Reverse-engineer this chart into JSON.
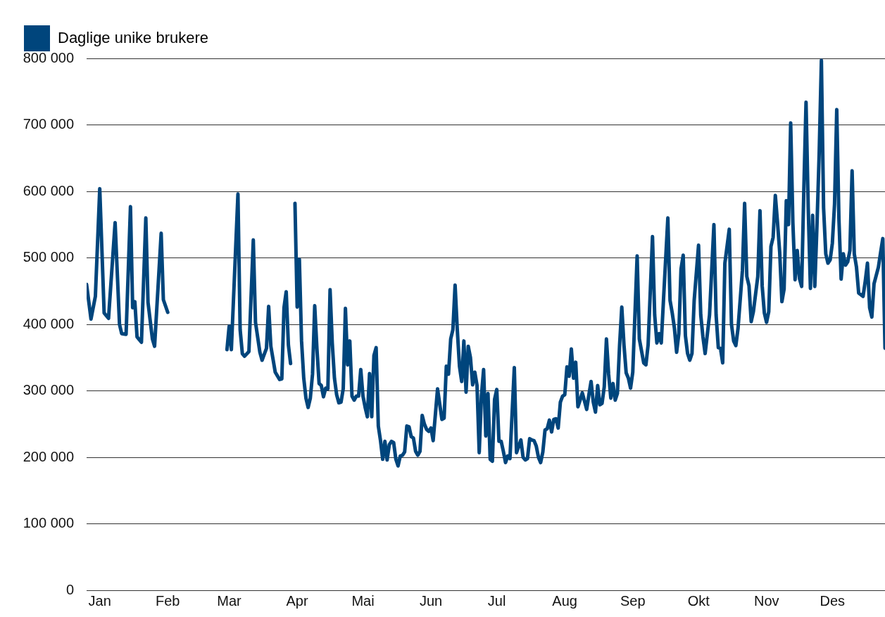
{
  "chart_data": {
    "type": "line",
    "legend": "top left",
    "grid": "y",
    "marker": "none",
    "line_style": "solid",
    "xlim": [
      "--01-01",
      "--12-31"
    ],
    "xticks": [
      {
        "value": "--01-07",
        "label": "Jan"
      },
      {
        "value": "--02-07",
        "label": "Feb"
      },
      {
        "value": "--03-07",
        "label": "Mar"
      },
      {
        "value": "--04-07",
        "label": "Apr"
      },
      {
        "value": "--05-07",
        "label": "Mai"
      },
      {
        "value": "--06-07",
        "label": "Jun"
      },
      {
        "value": "--07-07",
        "label": "Jul"
      },
      {
        "value": "--08-07",
        "label": "Aug"
      },
      {
        "value": "--09-07",
        "label": "Sep"
      },
      {
        "value": "--10-07",
        "label": "Okt"
      },
      {
        "value": "--11-07",
        "label": "Nov"
      },
      {
        "value": "--12-07",
        "label": "Des"
      }
    ],
    "ylim": [
      0,
      800000
    ],
    "yticks": [
      {
        "value": 0,
        "label": "0"
      },
      {
        "value": 100000,
        "label": "100 000"
      },
      {
        "value": 200000,
        "label": "200 000"
      },
      {
        "value": 300000,
        "label": "300 000"
      },
      {
        "value": 400000,
        "label": "400 000"
      },
      {
        "value": 500000,
        "label": "500 000"
      },
      {
        "value": 600000,
        "label": "600 000"
      },
      {
        "value": 700000,
        "label": "700 000"
      },
      {
        "value": 800000,
        "label": "800 000"
      }
    ],
    "x": [
      "--01-01",
      "--01-03",
      "--01-05",
      "--01-07",
      "--01-09",
      "--01-11",
      "--01-14",
      "--01-16",
      "--01-17",
      "--01-19",
      "--01-21",
      "--01-22",
      "--01-23",
      "--01-24",
      "--01-26",
      "--01-28",
      "--01-29",
      "--01-31",
      "--02-01",
      "--02-04",
      "--02-05",
      "--02-07",
      "--02-19",
      "--03-06",
      "--03-07",
      "--03-08",
      "--03-11",
      "--03-12",
      "--03-13",
      "--03-14",
      "--03-16",
      "--03-18",
      "--03-19",
      "--03-21",
      "--03-22",
      "--03-24",
      "--03-25",
      "--03-26",
      "--03-28",
      "--03-30",
      "--03-31",
      "--04-01",
      "--04-02",
      "--04-03",
      "--04-04",
      "--04-05",
      "--04-06",
      "--04-07",
      "--04-08",
      "--04-09",
      "--04-10",
      "--04-11",
      "--04-12",
      "--04-13",
      "--04-14",
      "--04-15",
      "--04-16",
      "--04-17",
      "--04-18",
      "--04-19",
      "--04-20",
      "--04-21",
      "--04-22",
      "--04-23",
      "--04-24",
      "--04-25",
      "--04-26",
      "--04-27",
      "--04-28",
      "--04-29",
      "--04-30",
      "--05-01",
      "--05-02",
      "--05-03",
      "--05-04",
      "--05-05",
      "--05-06",
      "--05-07",
      "--05-08",
      "--05-09",
      "--05-10",
      "--05-11",
      "--05-12",
      "--05-13",
      "--05-14",
      "--05-15",
      "--05-16",
      "--05-17",
      "--05-18",
      "--05-19",
      "--05-20",
      "--05-21",
      "--05-22",
      "--05-23",
      "--05-24",
      "--05-25",
      "--05-26",
      "--05-27",
      "--05-28",
      "--05-29",
      "--05-30",
      "--05-31",
      "--06-01",
      "--06-02",
      "--06-03",
      "--06-04",
      "--06-05",
      "--06-06",
      "--06-07",
      "--06-08",
      "--06-10",
      "--06-12",
      "--06-13",
      "--06-14",
      "--06-15",
      "--06-16",
      "--06-17",
      "--06-18",
      "--06-19",
      "--06-20",
      "--06-21",
      "--06-22",
      "--06-23",
      "--06-24",
      "--06-25",
      "--06-26",
      "--06-27",
      "--06-28",
      "--06-29",
      "--06-30",
      "--07-01",
      "--07-02",
      "--07-03",
      "--07-04",
      "--07-05",
      "--07-06",
      "--07-07",
      "--07-08",
      "--07-09",
      "--07-10",
      "--07-11",
      "--07-12",
      "--07-13",
      "--07-15",
      "--07-16",
      "--07-18",
      "--07-19",
      "--07-20",
      "--07-21",
      "--07-22",
      "--07-23",
      "--07-24",
      "--07-25",
      "--07-26",
      "--07-27",
      "--07-28",
      "--07-29",
      "--07-30",
      "--07-31",
      "--08-01",
      "--08-02",
      "--08-03",
      "--08-04",
      "--08-05",
      "--08-06",
      "--08-07",
      "--08-08",
      "--08-09",
      "--08-10",
      "--08-11",
      "--08-12",
      "--08-13",
      "--08-14",
      "--08-15",
      "--08-17",
      "--08-18",
      "--08-19",
      "--08-20",
      "--08-21",
      "--08-22",
      "--08-23",
      "--08-24",
      "--08-25",
      "--08-26",
      "--08-27",
      "--08-28",
      "--08-29",
      "--08-30",
      "--08-31",
      "--09-01",
      "--09-02",
      "--09-03",
      "--09-04",
      "--09-05",
      "--09-06",
      "--09-07",
      "--09-09",
      "--09-10",
      "--09-12",
      "--09-13",
      "--09-14",
      "--09-16",
      "--09-17",
      "--09-18",
      "--09-19",
      "--09-20",
      "--09-21",
      "--09-23",
      "--09-24",
      "--09-25",
      "--09-26",
      "--09-27",
      "--09-28",
      "--09-29",
      "--09-30",
      "--10-01",
      "--10-02",
      "--10-03",
      "--10-04",
      "--10-05",
      "--10-07",
      "--10-08",
      "--10-09",
      "--10-10",
      "--10-12",
      "--10-14",
      "--10-15",
      "--10-16",
      "--10-17",
      "--10-18",
      "--10-19",
      "--10-21",
      "--10-22",
      "--10-23",
      "--10-24",
      "--10-25",
      "--10-27",
      "--10-28",
      "--10-29",
      "--10-30",
      "--10-31",
      "--11-01",
      "--11-03",
      "--11-04",
      "--11-05",
      "--11-06",
      "--11-07",
      "--11-08",
      "--11-09",
      "--11-10",
      "--11-11",
      "--11-12",
      "--11-13",
      "--11-14",
      "--11-15",
      "--11-16",
      "--11-17",
      "--11-18",
      "--11-19",
      "--11-20",
      "--11-21",
      "--11-22",
      "--11-23",
      "--11-24",
      "--11-25",
      "--11-26",
      "--11-27",
      "--11-28",
      "--11-29",
      "--11-30",
      "--12-01",
      "--12-02",
      "--12-03",
      "--12-04",
      "--12-05",
      "--12-06",
      "--12-07",
      "--12-08",
      "--12-09",
      "--12-10",
      "--12-11",
      "--12-12",
      "--12-13",
      "--12-14",
      "--12-15",
      "--12-16",
      "--12-17",
      "--12-18",
      "--12-19",
      "--12-21",
      "--12-22",
      "--12-23",
      "--12-24",
      "--12-25",
      "--12-26",
      "--12-28",
      "--12-29",
      "--12-30",
      "--12-31"
    ],
    "series": [
      {
        "name": "Daglige unike brukere",
        "color": "#00457c",
        "values": [
          460000,
          408000,
          442000,
          604000,
          417000,
          409000,
          553000,
          400000,
          386000,
          385000,
          577000,
          425000,
          434000,
          381000,
          373000,
          560000,
          433000,
          378000,
          367000,
          537000,
          437000,
          418000,
          null,
          362000,
          397000,
          362000,
          596000,
          392000,
          356000,
          352000,
          359000,
          527000,
          403000,
          358000,
          346000,
          364000,
          427000,
          367000,
          328000,
          317000,
          318000,
          425000,
          449000,
          369000,
          341000,
          null,
          582000,
          426000,
          498000,
          375000,
          319000,
          289000,
          275000,
          289000,
          325000,
          428000,
          364000,
          311000,
          308000,
          291000,
          304000,
          303000,
          452000,
          372000,
          319000,
          294000,
          282000,
          283000,
          303000,
          424000,
          339000,
          375000,
          292000,
          286000,
          292000,
          292000,
          332000,
          292000,
          275000,
          261000,
          326000,
          261000,
          353000,
          365000,
          247000,
          225000,
          197000,
          224000,
          196000,
          219000,
          224000,
          222000,
          197000,
          187000,
          202000,
          203000,
          208000,
          247000,
          246000,
          231000,
          229000,
          209000,
          203000,
          209000,
          263000,
          250000,
          242000,
          239000,
          244000,
          225000,
          303000,
          257000,
          259000,
          337000,
          325000,
          378000,
          392000,
          459000,
          392000,
          337000,
          314000,
          375000,
          298000,
          367000,
          350000,
          309000,
          328000,
          308000,
          207000,
          292000,
          332000,
          232000,
          296000,
          197000,
          194000,
          287000,
          302000,
          224000,
          224000,
          209000,
          192000,
          202000,
          198000,
          335000,
          207000,
          226000,
          200000,
          196000,
          198000,
          228000,
          226000,
          225000,
          217000,
          200000,
          192000,
          208000,
          241000,
          243000,
          256000,
          238000,
          257000,
          258000,
          244000,
          283000,
          292000,
          294000,
          336000,
          322000,
          363000,
          319000,
          343000,
          276000,
          286000,
          297000,
          272000,
          294000,
          314000,
          283000,
          268000,
          308000,
          279000,
          281000,
          306000,
          378000,
          325000,
          289000,
          311000,
          286000,
          296000,
          369000,
          426000,
          369000,
          327000,
          319000,
          304000,
          328000,
          503000,
          378000,
          342000,
          339000,
          369000,
          532000,
          414000,
          372000,
          386000,
          372000,
          436000,
          560000,
          436000,
          417000,
          394000,
          358000,
          386000,
          483000,
          504000,
          383000,
          356000,
          346000,
          356000,
          436000,
          519000,
          414000,
          381000,
          356000,
          414000,
          550000,
          414000,
          365000,
          364000,
          342000,
          492000,
          543000,
          400000,
          375000,
          368000,
          394000,
          481000,
          582000,
          472000,
          458000,
          404000,
          419000,
          472000,
          571000,
          458000,
          417000,
          403000,
          419000,
          517000,
          531000,
          594000,
          553000,
          508000,
          434000,
          453000,
          586000,
          550000,
          703000,
          553000,
          467000,
          511000,
          469000,
          457000,
          603000,
          734000,
          575000,
          454000,
          564000,
          457000,
          550000,
          658000,
          797000,
          575000,
          506000,
          492000,
          497000,
          522000,
          581000,
          723000,
          558000,
          468000,
          506000,
          489000,
          494000,
          511000,
          631000,
          506000,
          486000,
          447000,
          442000,
          465000,
          492000,
          425000,
          411000,
          461000,
          486000,
          508000,
          529000,
          364000
        ]
      }
    ]
  }
}
